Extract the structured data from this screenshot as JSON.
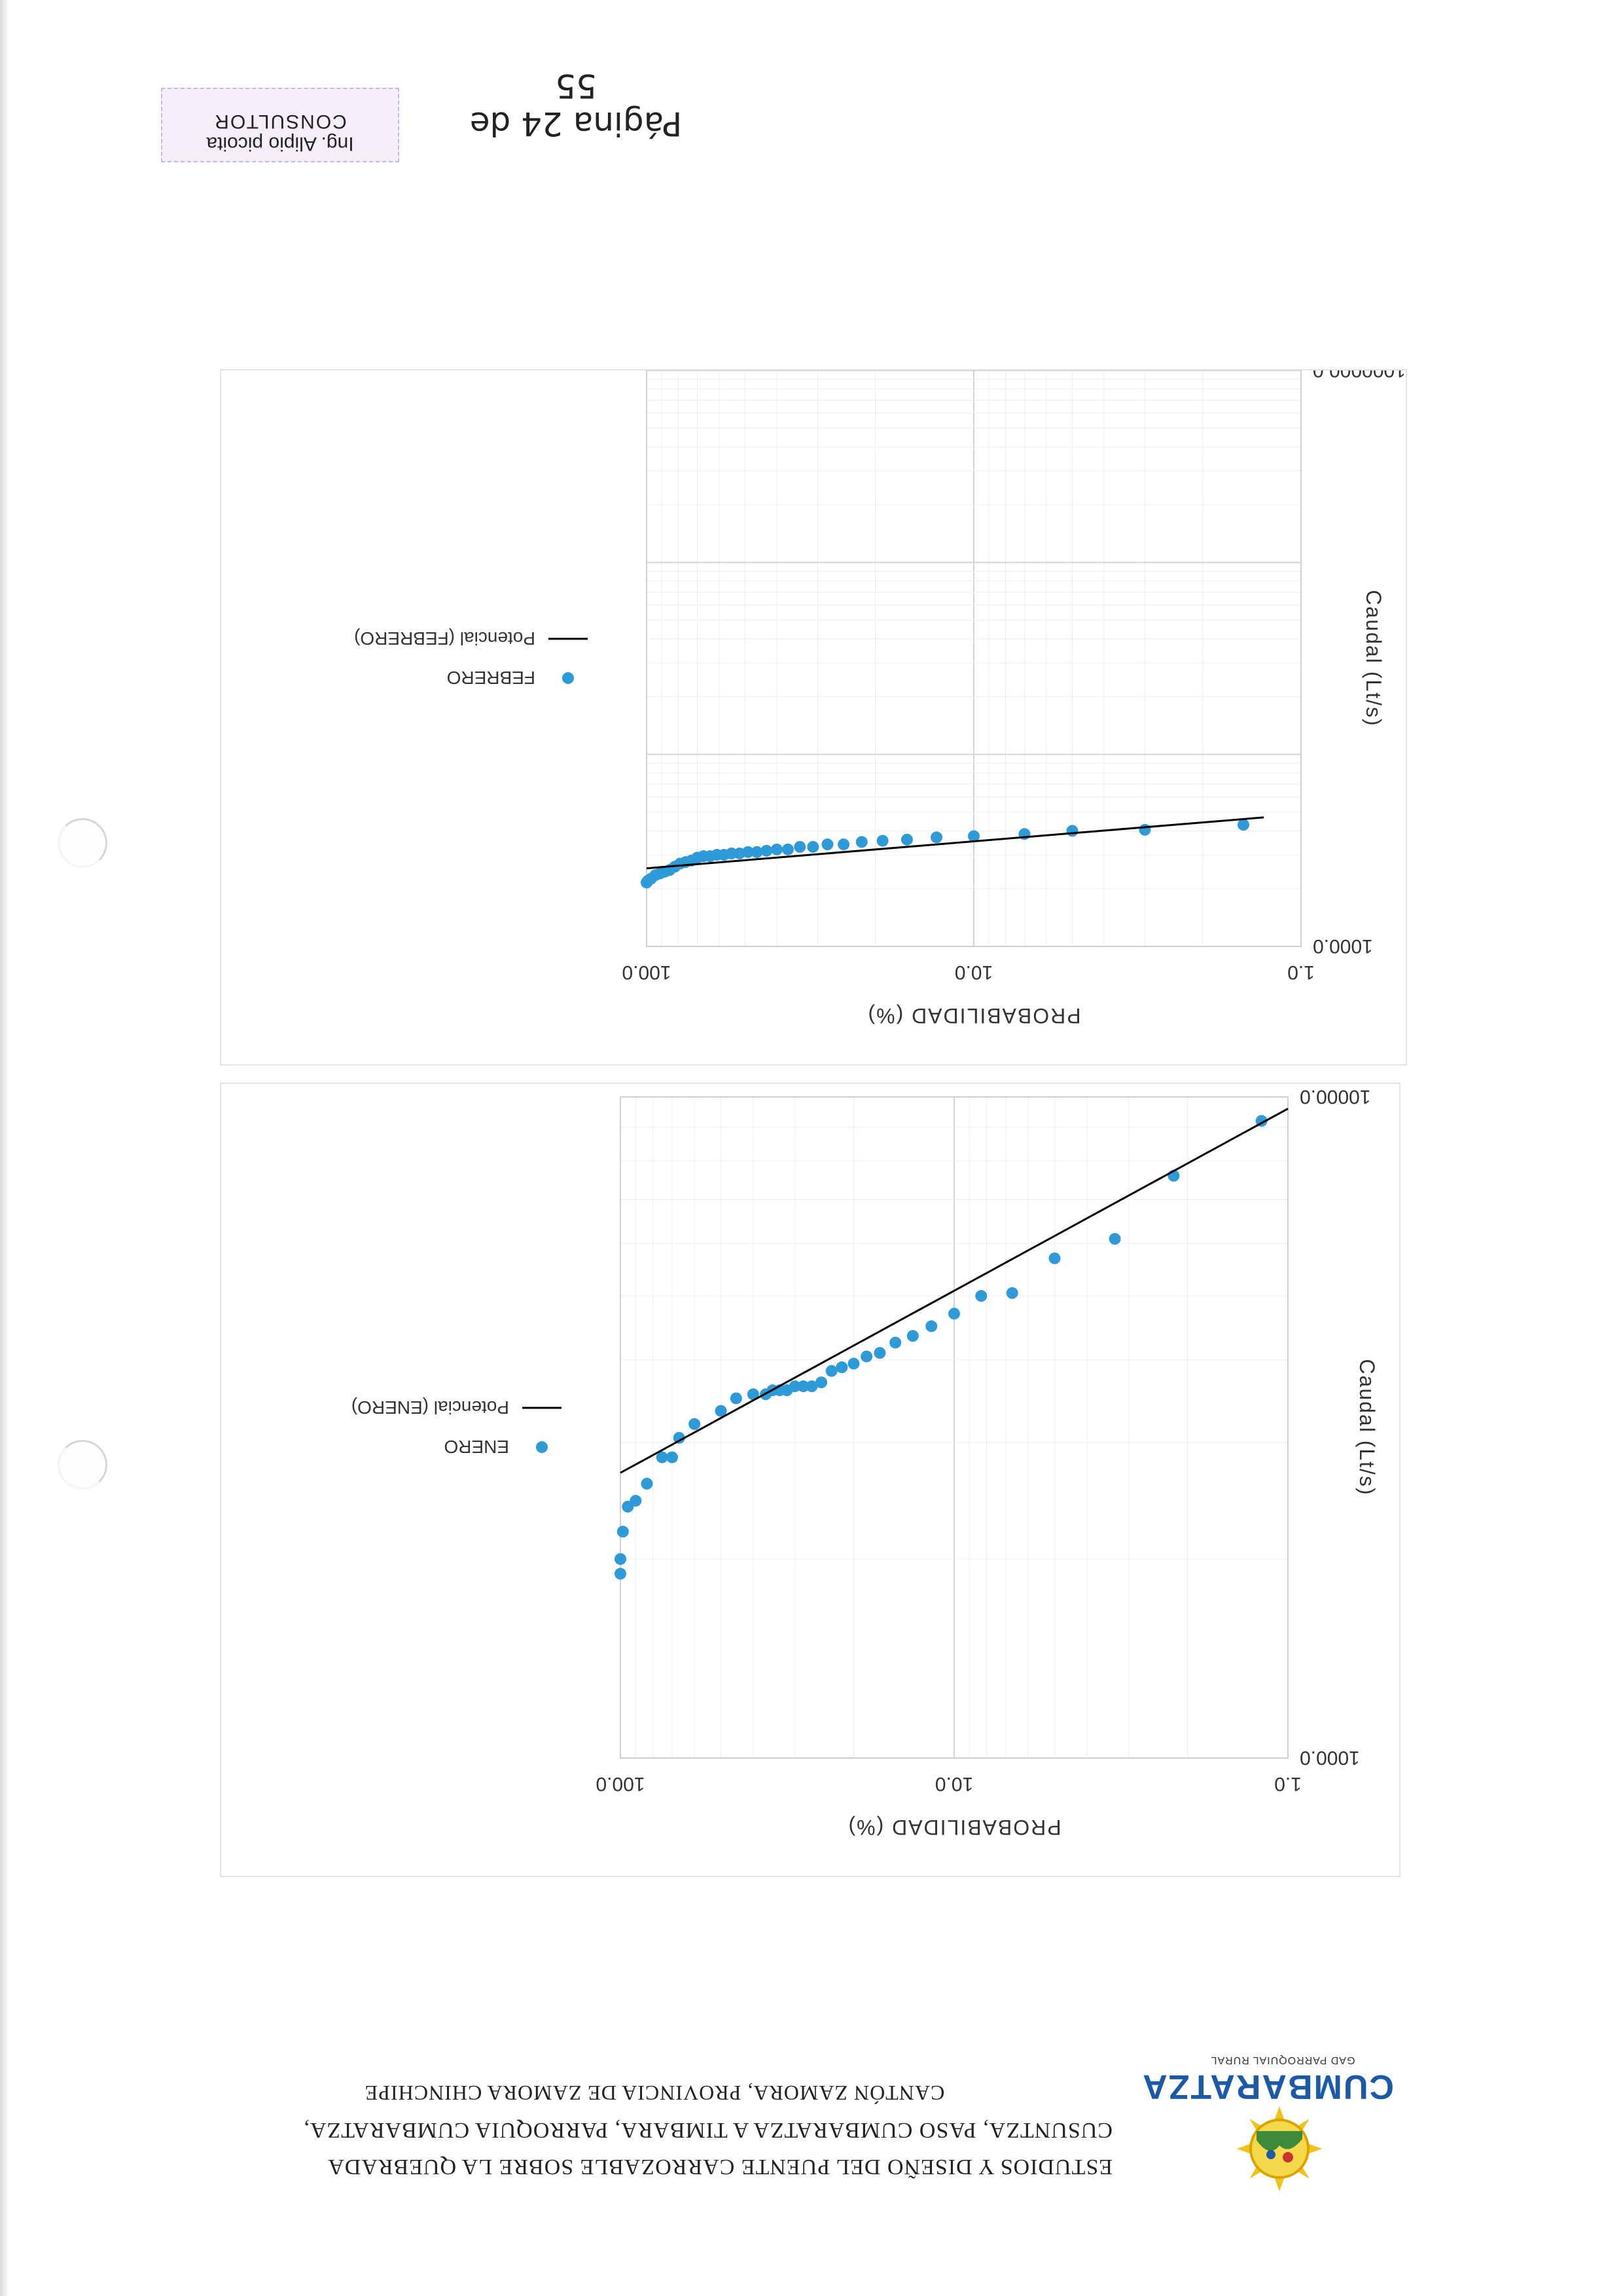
{
  "header": {
    "title": "ESTUDIOS Y DISEÑO DEL PUENTE CARROZABLE SOBRE LA QUEBRADA CUSUNTZA, PASO CUMBARATZA A TIMBARA, PARROQUIA CUMBARATZA, CANTÓN ZAMORA, PROVINCIA DE ZAMORA CHINCHIPE",
    "title_line1": "ESTUDIOS Y DISEÑO DEL PUENTE CARROZABLE SOBRE LA QUEBRADA",
    "title_line2": "CUSUNTZA, PASO CUMBARATZA A TIMBARA, PARROQUIA CUMBARATZA,",
    "title_line3": "CANTÓN ZAMORA, PROVINCIA DE ZAMORA CHINCHIPE",
    "logo_text": "CUMBARATZA",
    "logo_subtext": "GAD PARROQUIAL RURAL"
  },
  "chart_data": [
    {
      "type": "scatter",
      "title": "",
      "xlabel": "PROBABILIDAD (%)",
      "ylabel": "Caudal (Lt/s)",
      "xscale": "log",
      "yscale": "log",
      "xlim": [
        1.0,
        100.0
      ],
      "ylim": [
        1000.0,
        10000.0
      ],
      "xticks": [
        "1.0",
        "10.0",
        "100.0"
      ],
      "yticks": [
        "1000.0",
        "10000.0"
      ],
      "grid": true,
      "legend": "right",
      "series": [
        {
          "name": "ENERO",
          "kind": "points",
          "color": "#2e9ad8",
          "points": [
            [
              1.2,
              9200
            ],
            [
              2.2,
              7600
            ],
            [
              3.3,
              6100
            ],
            [
              5.0,
              5700
            ],
            [
              6.7,
              5050
            ],
            [
              8.3,
              5000
            ],
            [
              10.0,
              4700
            ],
            [
              11.7,
              4500
            ],
            [
              13.3,
              4350
            ],
            [
              15.0,
              4250
            ],
            [
              16.7,
              4100
            ],
            [
              18.3,
              4050
            ],
            [
              20.0,
              3950
            ],
            [
              21.7,
              3900
            ],
            [
              23.3,
              3850
            ],
            [
              25.0,
              3700
            ],
            [
              26.7,
              3650
            ],
            [
              28.3,
              3650
            ],
            [
              30.0,
              3650
            ],
            [
              31.7,
              3600
            ],
            [
              33.3,
              3600
            ],
            [
              35.0,
              3600
            ],
            [
              36.7,
              3550
            ],
            [
              40.0,
              3550
            ],
            [
              45.0,
              3500
            ],
            [
              50.0,
              3350
            ],
            [
              60.0,
              3200
            ],
            [
              66.7,
              3050
            ],
            [
              70.0,
              2850
            ],
            [
              75.0,
              2850
            ],
            [
              83.3,
              2600
            ],
            [
              90.0,
              2450
            ],
            [
              95.0,
              2400
            ],
            [
              98.3,
              2200
            ],
            [
              100.0,
              2000
            ],
            [
              100.0,
              1900
            ]
          ]
        },
        {
          "name": "Potencial (ENERO)",
          "kind": "line",
          "color": "#000000",
          "points": [
            [
              1.0,
              9600
            ],
            [
              100.0,
              2700
            ]
          ]
        }
      ]
    },
    {
      "type": "scatter",
      "title": "",
      "xlabel": "PROBABILIDAD (%)",
      "ylabel": "Caudal (Lt/s)",
      "xscale": "log",
      "yscale": "log",
      "xlim": [
        1.0,
        100.0
      ],
      "ylim": [
        1000.0,
        1000000.0
      ],
      "xticks": [
        "1.0",
        "10.0",
        "100.0"
      ],
      "yticks": [
        "1000.0",
        "1000000.0"
      ],
      "grid": true,
      "legend": "right",
      "series": [
        {
          "name": "FEBRERO",
          "kind": "points",
          "color": "#2e9ad8",
          "points": [
            [
              1.5,
              4300
            ],
            [
              3.0,
              4050
            ],
            [
              5.0,
              4000
            ],
            [
              7.0,
              3850
            ],
            [
              10.0,
              3750
            ],
            [
              13.0,
              3700
            ],
            [
              16.0,
              3600
            ],
            [
              19.0,
              3550
            ],
            [
              22.0,
              3500
            ],
            [
              25.0,
              3400
            ],
            [
              28.0,
              3400
            ],
            [
              31.0,
              3300
            ],
            [
              34.0,
              3300
            ],
            [
              37.0,
              3200
            ],
            [
              40.0,
              3200
            ],
            [
              43.0,
              3150
            ],
            [
              46.0,
              3100
            ],
            [
              49.0,
              3100
            ],
            [
              52.0,
              3050
            ],
            [
              55.0,
              3050
            ],
            [
              58.0,
              3000
            ],
            [
              61.0,
              3000
            ],
            [
              64.0,
              2950
            ],
            [
              67.0,
              2950
            ],
            [
              70.0,
              2900
            ],
            [
              73.0,
              2800
            ],
            [
              76.0,
              2750
            ],
            [
              79.0,
              2700
            ],
            [
              82.0,
              2600
            ],
            [
              85.0,
              2500
            ],
            [
              88.0,
              2450
            ],
            [
              91.0,
              2400
            ],
            [
              94.0,
              2350
            ],
            [
              97.0,
              2250
            ],
            [
              99.0,
              2200
            ],
            [
              100.0,
              2150
            ]
          ]
        },
        {
          "name": "Potencial (FEBRERO)",
          "kind": "line",
          "color": "#000000",
          "points": [
            [
              1.3,
              4700
            ],
            [
              100.0,
              2550
            ]
          ]
        }
      ]
    }
  ],
  "footer": {
    "page": "Página 24 de 55",
    "stamp_line1": "Ing. Alipio picoita",
    "stamp_line2": "CONSULTOR"
  }
}
